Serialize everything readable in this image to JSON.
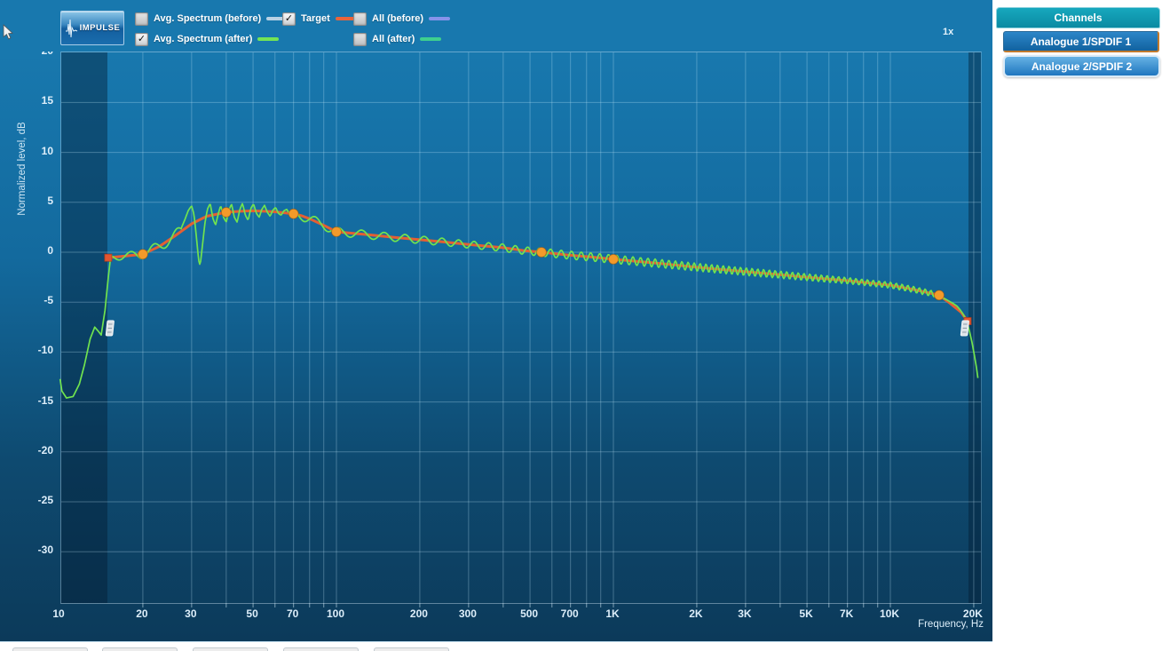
{
  "header": {
    "impulse_button": "IMPULSE",
    "zoom_label": "1x"
  },
  "legend": {
    "rows": [
      [
        {
          "id": "avg-spectrum-before",
          "label": "Avg. Spectrum (before)",
          "checked": false,
          "color": "#b9d2e4"
        },
        {
          "id": "target",
          "label": "Target",
          "checked": true,
          "color": "#e8643a"
        },
        {
          "id": "all-before",
          "label": "All (before)",
          "checked": false,
          "color": "#8793ea"
        }
      ],
      [
        {
          "id": "avg-spectrum-after",
          "label": "Avg. Spectrum (after)",
          "checked": true,
          "color": "#74e455"
        },
        {
          "id": "all-after",
          "label": "All (after)",
          "checked": false,
          "color": "#3ecf8f"
        }
      ]
    ]
  },
  "channels_panel": {
    "title": "Channels",
    "buttons": [
      {
        "label": "Analogue 1/SPDIF 1",
        "style": "active-tab"
      },
      {
        "label": "Analogue 2/SPDIF 2",
        "style": "selected"
      }
    ]
  },
  "bottom_toolbar": {
    "visible_button_slivers": 5
  },
  "chart_data": {
    "type": "line",
    "x_axis": {
      "label": "Frequency, Hz",
      "scale": "log",
      "range_hz": [
        10,
        21200
      ],
      "tick_labels": [
        [
          10,
          "10"
        ],
        [
          20,
          "20"
        ],
        [
          30,
          "30"
        ],
        [
          50,
          "50"
        ],
        [
          70,
          "70"
        ],
        [
          100,
          "100"
        ],
        [
          200,
          "200"
        ],
        [
          300,
          "300"
        ],
        [
          500,
          "500"
        ],
        [
          700,
          "700"
        ],
        [
          1000,
          "1K"
        ],
        [
          2000,
          "2K"
        ],
        [
          3000,
          "3K"
        ],
        [
          5000,
          "5K"
        ],
        [
          7000,
          "7K"
        ],
        [
          10000,
          "10K"
        ],
        [
          20000,
          "20K"
        ]
      ],
      "gridlines_hz": [
        20,
        30,
        40,
        50,
        60,
        70,
        80,
        90,
        100,
        200,
        300,
        400,
        500,
        600,
        700,
        800,
        900,
        1000,
        2000,
        3000,
        4000,
        5000,
        6000,
        7000,
        8000,
        9000,
        10000,
        20000
      ]
    },
    "y_axis": {
      "label": "Normalized level, dB",
      "range_db": [
        -35,
        20
      ],
      "tick_labels": [
        [
          20,
          "20"
        ],
        [
          15,
          "15"
        ],
        [
          10,
          "10"
        ],
        [
          5,
          "5"
        ],
        [
          0,
          "0"
        ],
        [
          -5,
          "-5"
        ],
        [
          -10,
          "-10"
        ],
        [
          -15,
          "-15"
        ],
        [
          -20,
          "-20"
        ],
        [
          -25,
          "-25"
        ],
        [
          -30,
          "-30"
        ]
      ],
      "gridline_step_db": 5
    },
    "shaded_regions_hz": [
      [
        10,
        15
      ],
      [
        19400,
        21200
      ]
    ],
    "window_handles": {
      "left_hz": 15,
      "right_hz": 18800,
      "level_db": -7.3
    },
    "series": [
      {
        "name": "Target",
        "color": "#e45f33",
        "width": 3,
        "control_points": [
          [
            20,
            -0.2
          ],
          [
            40,
            4.0
          ],
          [
            70,
            3.85
          ],
          [
            100,
            2.05
          ],
          [
            550,
            0.0
          ],
          [
            1000,
            -0.7
          ],
          [
            15000,
            -4.3
          ]
        ],
        "endpoints": [
          [
            15,
            -0.55
          ],
          [
            19000,
            -6.9
          ]
        ],
        "path": [
          [
            15,
            -0.55
          ],
          [
            17,
            -0.4
          ],
          [
            20,
            -0.2
          ],
          [
            23,
            0.6
          ],
          [
            26,
            1.6
          ],
          [
            30,
            2.85
          ],
          [
            34,
            3.6
          ],
          [
            40,
            4.0
          ],
          [
            45,
            4.1
          ],
          [
            50,
            4.15
          ],
          [
            55,
            4.1
          ],
          [
            60,
            4.05
          ],
          [
            65,
            3.95
          ],
          [
            70,
            3.85
          ],
          [
            75,
            3.65
          ],
          [
            80,
            3.35
          ],
          [
            90,
            2.7
          ],
          [
            100,
            2.05
          ],
          [
            130,
            1.75
          ],
          [
            160,
            1.5
          ],
          [
            200,
            1.25
          ],
          [
            250,
            1.0
          ],
          [
            320,
            0.7
          ],
          [
            400,
            0.45
          ],
          [
            480,
            0.15
          ],
          [
            550,
            0.0
          ],
          [
            700,
            -0.3
          ],
          [
            850,
            -0.5
          ],
          [
            1000,
            -0.7
          ],
          [
            1500,
            -1.15
          ],
          [
            2000,
            -1.5
          ],
          [
            3000,
            -1.95
          ],
          [
            4000,
            -2.25
          ],
          [
            5000,
            -2.5
          ],
          [
            7000,
            -2.85
          ],
          [
            10000,
            -3.3
          ],
          [
            12000,
            -3.7
          ],
          [
            15000,
            -4.3
          ],
          [
            16500,
            -5.15
          ],
          [
            18000,
            -6.0
          ],
          [
            19000,
            -6.9
          ]
        ]
      },
      {
        "name": "Avg. Spectrum (after)",
        "color": "#70e34f",
        "width": 1.7,
        "left_tail": [
          [
            10.05,
            -12.7
          ],
          [
            10.2,
            -13.9
          ],
          [
            10.6,
            -14.6
          ],
          [
            11.2,
            -14.45
          ],
          [
            11.8,
            -13.2
          ],
          [
            12.3,
            -11.3
          ],
          [
            12.9,
            -8.7
          ],
          [
            13.4,
            -7.5
          ],
          [
            13.8,
            -7.9
          ],
          [
            14.15,
            -8.3
          ],
          [
            14.6,
            -5.8
          ],
          [
            15.0,
            -2.6
          ],
          [
            15.25,
            -0.8
          ]
        ],
        "feature_28_71": [
          [
            27.5,
            2.4
          ],
          [
            28.3,
            3.2
          ],
          [
            29.2,
            4.2
          ],
          [
            30,
            4.65
          ],
          [
            30.6,
            3.8
          ],
          [
            31.2,
            1.6
          ],
          [
            31.8,
            -0.8
          ],
          [
            32.2,
            -1.35
          ],
          [
            32.8,
            0.6
          ],
          [
            33.5,
            2.9
          ],
          [
            34.2,
            4.3
          ],
          [
            35,
            4.9
          ],
          [
            35.8,
            3.4
          ],
          [
            36.6,
            2.7
          ],
          [
            37.4,
            3.8
          ],
          [
            38.2,
            4.7
          ],
          [
            39.1,
            3.5
          ],
          [
            40,
            3.0
          ],
          [
            40.9,
            4.2
          ],
          [
            41.8,
            4.85
          ],
          [
            42.8,
            3.5
          ],
          [
            43.8,
            3.0
          ],
          [
            44.8,
            4.3
          ],
          [
            45.8,
            4.9
          ],
          [
            46.9,
            3.7
          ],
          [
            48,
            3.2
          ],
          [
            49.1,
            4.4
          ],
          [
            50.2,
            4.85
          ],
          [
            51.4,
            3.9
          ],
          [
            52.6,
            3.5
          ],
          [
            53.8,
            4.3
          ],
          [
            55,
            4.7
          ],
          [
            56.3,
            4.0
          ],
          [
            57.6,
            3.6
          ],
          [
            58.9,
            4.2
          ],
          [
            60.3,
            4.5
          ],
          [
            61.7,
            3.9
          ],
          [
            63.1,
            3.7
          ],
          [
            64.6,
            4.15
          ],
          [
            66.1,
            4.3
          ],
          [
            67.6,
            3.9
          ],
          [
            69.2,
            3.8
          ],
          [
            70.8,
            4.05
          ]
        ],
        "right_tail": [
          [
            15200,
            -4.5
          ],
          [
            15800,
            -4.7
          ],
          [
            16300,
            -4.9
          ],
          [
            16900,
            -5.15
          ],
          [
            17400,
            -5.4
          ],
          [
            17900,
            -5.8
          ],
          [
            18400,
            -6.3
          ],
          [
            18900,
            -7.0
          ],
          [
            19300,
            -7.9
          ],
          [
            19700,
            -9.0
          ],
          [
            20100,
            -10.3
          ],
          [
            20450,
            -11.5
          ],
          [
            20700,
            -12.6
          ]
        ],
        "ripple_amplitude_db": [
          [
            15.3,
            0.3
          ],
          [
            20,
            0.45
          ],
          [
            27,
            0.6
          ],
          [
            72,
            0.5
          ],
          [
            100,
            0.42
          ],
          [
            300,
            0.36
          ],
          [
            1000,
            0.42
          ],
          [
            3000,
            0.38
          ],
          [
            8000,
            0.3
          ],
          [
            14000,
            0.3
          ],
          [
            15000,
            0.2
          ]
        ]
      }
    ]
  }
}
